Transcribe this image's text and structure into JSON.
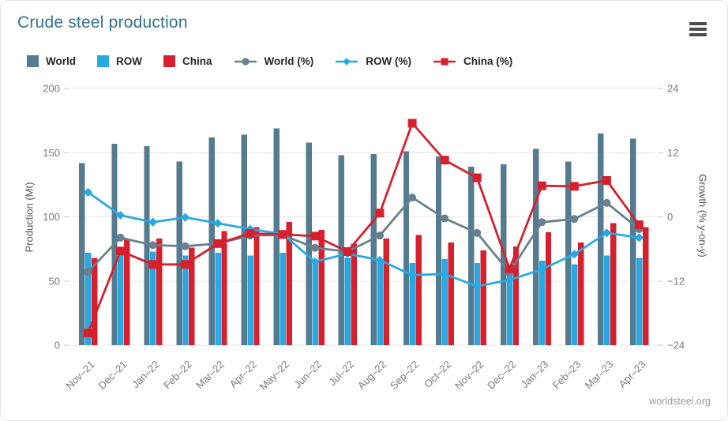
{
  "header": {
    "title": "Crude steel production",
    "title_color": "#35718f"
  },
  "menu": {
    "icon": "hamburger-icon"
  },
  "footer": {
    "source": "worldsteel.org"
  },
  "chart_data": {
    "type": "combo-bar-line",
    "title": "Crude steel production",
    "legend_position": "top",
    "grid": true,
    "categories": [
      "Nov–21",
      "Dec–21",
      "Jan–22",
      "Feb–22",
      "Mar–22",
      "Apr–22",
      "May–22",
      "Jun–22",
      "Jul–22",
      "Aug–22",
      "Sep–22",
      "Oct–22",
      "Nov–22",
      "Dec–22",
      "Jan–23",
      "Feb–23",
      "Mar–23",
      "Apr–23"
    ],
    "bar_series": [
      {
        "name": "World",
        "color": "#557b91",
        "axis": "left",
        "values": [
          142,
          157,
          155,
          143,
          162,
          164,
          169,
          158,
          148,
          149,
          151,
          147,
          139,
          141,
          153,
          143,
          165,
          161
        ]
      },
      {
        "name": "ROW",
        "color": "#29a9e1",
        "axis": "left",
        "values": [
          72,
          71,
          73,
          70,
          72,
          70,
          72,
          65,
          68,
          66,
          64,
          67,
          64,
          56,
          66,
          63,
          70,
          68
        ]
      },
      {
        "name": "China",
        "color": "#d6202e",
        "axis": "left",
        "values": [
          68,
          83,
          83,
          76,
          89,
          92,
          96,
          90,
          79,
          83,
          86,
          80,
          74,
          77,
          88,
          80,
          95,
          92
        ]
      }
    ],
    "line_series": [
      {
        "name": "World (%)",
        "color": "#68808f",
        "marker": "circle",
        "axis": "right",
        "values": [
          -10.3,
          -3.9,
          -5.3,
          -5.5,
          -5.0,
          -3.5,
          -3.4,
          -5.8,
          -6.5,
          -3.5,
          3.6,
          -0.3,
          -3.0,
          -10.4,
          -1.0,
          -0.4,
          2.6,
          -2.3
        ]
      },
      {
        "name": "ROW (%)",
        "color": "#29a9e1",
        "marker": "diamond",
        "axis": "right",
        "values": [
          4.6,
          0.3,
          -1.0,
          -0.1,
          -1.2,
          -2.3,
          -3.2,
          -8.4,
          -6.9,
          -8.1,
          -10.9,
          -10.7,
          -13.0,
          -11.8,
          -9.8,
          -7.0,
          -3.0,
          -3.9
        ]
      },
      {
        "name": "China (%)",
        "color": "#d6202e",
        "marker": "square",
        "axis": "right",
        "values": [
          -21.7,
          -6.4,
          -8.9,
          -8.9,
          -5.0,
          -3.1,
          -3.3,
          -3.6,
          -6.5,
          0.7,
          17.5,
          10.6,
          7.3,
          -9.7,
          5.8,
          5.7,
          6.8,
          -1.5
        ]
      }
    ],
    "y_left": {
      "label": "Production (Mt)",
      "range": [
        0,
        200
      ],
      "tick_values": [
        0,
        50,
        100,
        150,
        200
      ],
      "tick_labels": [
        "0",
        "50",
        "100",
        "150",
        "200"
      ]
    },
    "y_right": {
      "label": "Growth (% y-on-y)",
      "range": [
        -24,
        24
      ],
      "tick_values": [
        -24,
        -12,
        0,
        12,
        24
      ],
      "tick_labels": [
        "−24",
        "−12",
        "0",
        "12",
        "24"
      ]
    }
  }
}
